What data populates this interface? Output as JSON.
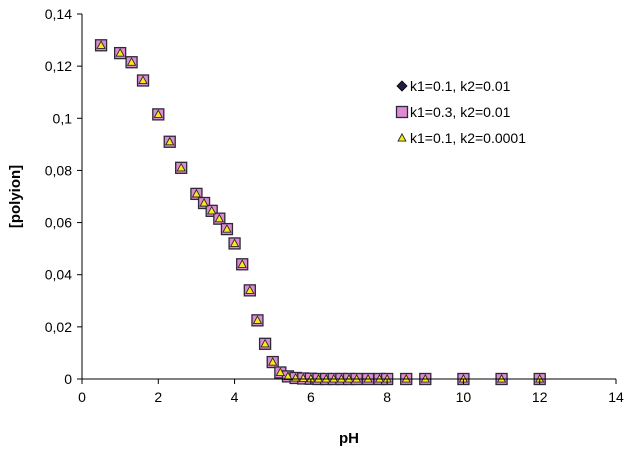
{
  "chart_data": {
    "type": "scatter",
    "title": "",
    "xlabel": "pH",
    "ylabel": "[polyion]",
    "xlim": [
      0,
      14
    ],
    "ylim": [
      0,
      0.14
    ],
    "x_ticks": [
      0,
      2,
      4,
      6,
      8,
      10,
      12,
      14
    ],
    "y_ticks": [
      0,
      0.02,
      0.04,
      0.06,
      0.08,
      0.1,
      0.12,
      0.14
    ],
    "x_tick_labels": [
      "0",
      "2",
      "4",
      "6",
      "8",
      "10",
      "12",
      "14"
    ],
    "y_tick_labels": [
      "0",
      "0,02",
      "0,04",
      "0,06",
      "0,08",
      "0,1",
      "0,12",
      "0,14"
    ],
    "grid": false,
    "legend_position": "right",
    "x": [
      0.5,
      1.0,
      1.3,
      1.6,
      2.0,
      2.3,
      2.6,
      3.0,
      3.2,
      3.4,
      3.6,
      3.8,
      4.0,
      4.2,
      4.4,
      4.6,
      4.8,
      5.0,
      5.2,
      5.4,
      5.6,
      5.8,
      6.0,
      6.2,
      6.4,
      6.6,
      6.8,
      7.0,
      7.2,
      7.5,
      7.8,
      8.0,
      8.5,
      9.0,
      10.0,
      11.0,
      12.0
    ],
    "series": [
      {
        "name": "k1=0.1, k2=0.01",
        "marker": "diamond",
        "color": "#1f1f3f",
        "values": [
          0.128,
          0.125,
          0.1215,
          0.1145,
          0.1015,
          0.091,
          0.081,
          0.071,
          0.0675,
          0.0645,
          0.0615,
          0.0575,
          0.052,
          0.044,
          0.034,
          0.0225,
          0.0135,
          0.0065,
          0.0025,
          0.001,
          0.0004,
          0.0002,
          0.0001,
          0,
          0,
          0,
          0,
          0,
          0,
          0,
          0,
          0,
          0,
          0,
          0,
          0,
          0
        ]
      },
      {
        "name": "k1=0.3, k2=0.01",
        "marker": "square",
        "color": "#e18ad4",
        "values": [
          0.128,
          0.125,
          0.1215,
          0.1145,
          0.1015,
          0.091,
          0.081,
          0.071,
          0.0675,
          0.0645,
          0.0615,
          0.0575,
          0.052,
          0.044,
          0.034,
          0.0225,
          0.0135,
          0.0065,
          0.0025,
          0.001,
          0.0004,
          0.0002,
          0.0001,
          0,
          0,
          0,
          0,
          0,
          0,
          0,
          0,
          0,
          0,
          0,
          0,
          0,
          0
        ]
      },
      {
        "name": "k1=0.1, k2=0.0001",
        "marker": "triangle",
        "color": "#f5ea1e",
        "values": [
          0.128,
          0.125,
          0.1215,
          0.1145,
          0.1015,
          0.091,
          0.081,
          0.071,
          0.0675,
          0.0645,
          0.0615,
          0.0575,
          0.052,
          0.044,
          0.034,
          0.0225,
          0.0135,
          0.0065,
          0.0025,
          0.001,
          0.0004,
          0.0002,
          0.0001,
          0,
          0,
          0,
          0,
          0,
          0,
          0,
          0,
          0,
          0,
          0,
          0,
          0,
          0
        ]
      }
    ]
  }
}
